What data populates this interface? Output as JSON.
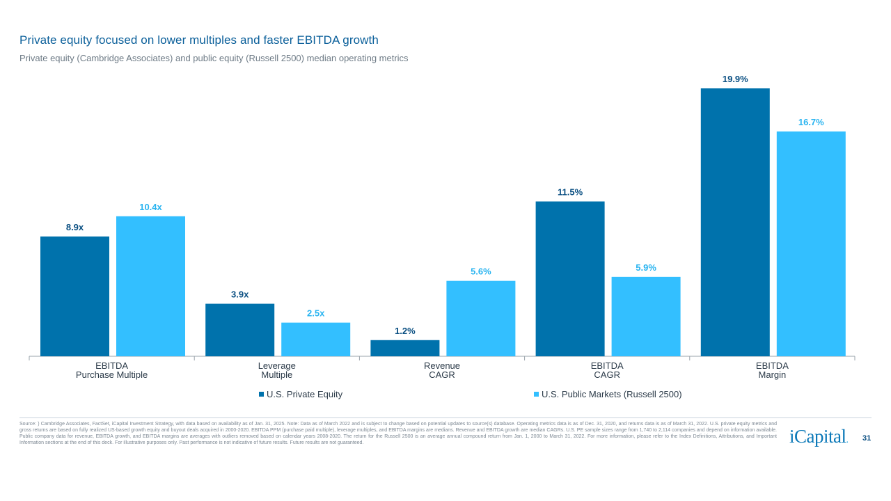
{
  "header": {
    "title": "Private equity focused on lower multiples and faster EBITDA growth",
    "subtitle": "Private equity (Cambridge Associates) and public equity (Russell 2500) median operating metrics"
  },
  "chart_data": {
    "type": "bar",
    "title": "Private equity focused on lower multiples and faster EBITDA growth",
    "xlabel": "",
    "ylabel": "",
    "categories": [
      [
        "EBITDA",
        "Purchase Multiple"
      ],
      [
        "Leverage",
        "Multiple"
      ],
      [
        "Revenue",
        "CAGR"
      ],
      [
        "EBITDA",
        "CAGR"
      ],
      [
        "EBITDA",
        "Margin"
      ]
    ],
    "series": [
      {
        "name": "U.S. Private Equity",
        "color": "#0072ac",
        "values": [
          8.9,
          3.9,
          1.2,
          11.5,
          19.9
        ],
        "labels": [
          "8.9x",
          "3.9x",
          "1.2%",
          "11.5%",
          "19.9%"
        ]
      },
      {
        "name": "U.S. Public Markets (Russell 2500)",
        "color": "#33bfff",
        "values": [
          10.4,
          2.5,
          5.6,
          5.9,
          16.7
        ],
        "labels": [
          "10.4x",
          "2.5x",
          "5.6%",
          "5.9%",
          "16.7%"
        ]
      }
    ],
    "ylim": [
      0,
      19.9
    ],
    "grid": false,
    "legend": "bottom-center"
  },
  "footer": {
    "source": "Source: ) Cambridge Associates, FactSet, iCapital Investment Strategy, with data based on availability as of Jan. 31, 2025. Note: Data as of March 2022 and is subject to change based on potential updates to source(s) database. Operating metrics data is as of Dec. 31, 2020, and returns data is as of March 31, 2022. U.S. private equity metrics and gross returns are based on fully realized US-based growth equity and buyout deals acquired in 2000-2020. EBITDA PPM (purchase paid multiple), leverage multiples, and EBITDA margins are medians. Revenue and EBITDA growth are median CAGRs. U.S. PE sample sizes range from 1,740 to 2,114 companies and depend on information available. Public company data for revenue, EBITDA growth, and EBITDA margins are averages with outliers removed based on calendar years 2008-2020. The return for the Russell 2500 is an average annual compound return from Jan. 1, 2000 to March 31, 2022. For more information, please refer to the Index Definitions, Attributions, and Important Information sections at the end of this deck. For illustrative purposes only. Past performance is not indicative of future results. Future results are not guaranteed.",
    "logo_text": "iCapital",
    "logo_dot": ".",
    "page_number": "31"
  }
}
